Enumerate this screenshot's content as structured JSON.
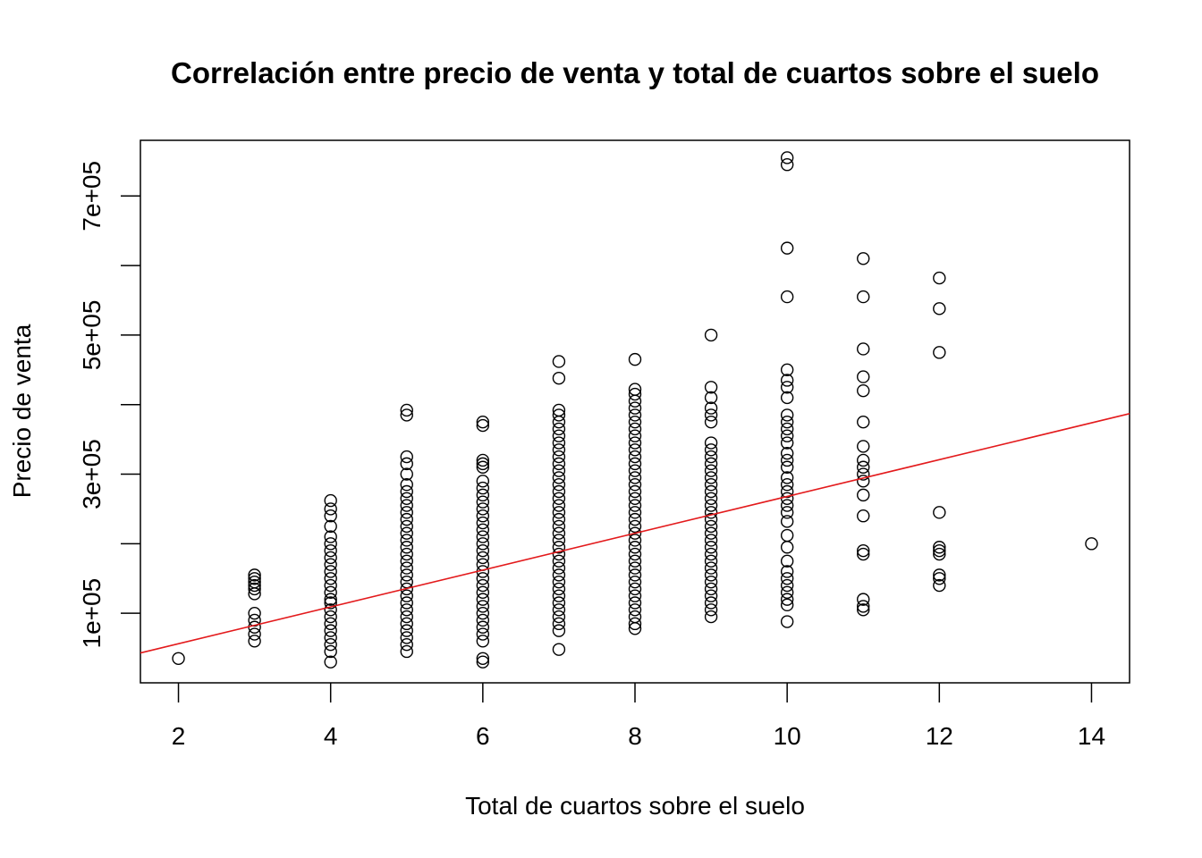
{
  "chart_data": {
    "type": "scatter",
    "title": "Correlación entre precio de venta y total de cuartos sobre el suelo",
    "xlabel": "Total de cuartos sobre el suelo",
    "ylabel": "Precio de venta",
    "xlim": [
      1.5,
      14.5
    ],
    "ylim": [
      0,
      780000
    ],
    "x_ticks": [
      2,
      4,
      6,
      8,
      10,
      12,
      14
    ],
    "x_tick_labels": [
      "2",
      "4",
      "6",
      "8",
      "10",
      "12",
      "14"
    ],
    "y_ticks": [
      100000,
      200000,
      300000,
      400000,
      500000,
      600000,
      700000
    ],
    "y_tick_labels": [
      "1e+05",
      "",
      "3e+05",
      "",
      "5e+05",
      "",
      "7e+05"
    ],
    "grid": false,
    "legend": "none",
    "colors": {
      "points": "#000000",
      "trend_line": "#e31a1c",
      "frame": "#000000"
    },
    "series": [
      {
        "values": [
          [
            2,
            35000
          ],
          [
            3,
            60000
          ],
          [
            3,
            70000
          ],
          [
            3,
            80000
          ],
          [
            3,
            90000
          ],
          [
            3,
            100000
          ],
          [
            3,
            128000
          ],
          [
            3,
            135000
          ],
          [
            3,
            140000
          ],
          [
            3,
            145000
          ],
          [
            3,
            150000
          ],
          [
            3,
            155000
          ],
          [
            4,
            30000
          ],
          [
            4,
            45000
          ],
          [
            4,
            55000
          ],
          [
            4,
            65000
          ],
          [
            4,
            75000
          ],
          [
            4,
            85000
          ],
          [
            4,
            95000
          ],
          [
            4,
            105000
          ],
          [
            4,
            115000
          ],
          [
            4,
            120000
          ],
          [
            4,
            130000
          ],
          [
            4,
            140000
          ],
          [
            4,
            150000
          ],
          [
            4,
            160000
          ],
          [
            4,
            170000
          ],
          [
            4,
            180000
          ],
          [
            4,
            190000
          ],
          [
            4,
            200000
          ],
          [
            4,
            210000
          ],
          [
            4,
            225000
          ],
          [
            4,
            240000
          ],
          [
            4,
            250000
          ],
          [
            4,
            262000
          ],
          [
            5,
            45000
          ],
          [
            5,
            55000
          ],
          [
            5,
            65000
          ],
          [
            5,
            75000
          ],
          [
            5,
            85000
          ],
          [
            5,
            95000
          ],
          [
            5,
            105000
          ],
          [
            5,
            115000
          ],
          [
            5,
            125000
          ],
          [
            5,
            135000
          ],
          [
            5,
            145000
          ],
          [
            5,
            155000
          ],
          [
            5,
            165000
          ],
          [
            5,
            175000
          ],
          [
            5,
            185000
          ],
          [
            5,
            195000
          ],
          [
            5,
            205000
          ],
          [
            5,
            215000
          ],
          [
            5,
            225000
          ],
          [
            5,
            235000
          ],
          [
            5,
            245000
          ],
          [
            5,
            255000
          ],
          [
            5,
            265000
          ],
          [
            5,
            275000
          ],
          [
            5,
            285000
          ],
          [
            5,
            300000
          ],
          [
            5,
            315000
          ],
          [
            5,
            325000
          ],
          [
            5,
            385000
          ],
          [
            5,
            392000
          ],
          [
            6,
            30000
          ],
          [
            6,
            35000
          ],
          [
            6,
            60000
          ],
          [
            6,
            70000
          ],
          [
            6,
            80000
          ],
          [
            6,
            90000
          ],
          [
            6,
            100000
          ],
          [
            6,
            110000
          ],
          [
            6,
            120000
          ],
          [
            6,
            130000
          ],
          [
            6,
            140000
          ],
          [
            6,
            150000
          ],
          [
            6,
            160000
          ],
          [
            6,
            170000
          ],
          [
            6,
            180000
          ],
          [
            6,
            190000
          ],
          [
            6,
            200000
          ],
          [
            6,
            210000
          ],
          [
            6,
            220000
          ],
          [
            6,
            230000
          ],
          [
            6,
            240000
          ],
          [
            6,
            250000
          ],
          [
            6,
            260000
          ],
          [
            6,
            270000
          ],
          [
            6,
            280000
          ],
          [
            6,
            290000
          ],
          [
            6,
            310000
          ],
          [
            6,
            315000
          ],
          [
            6,
            320000
          ],
          [
            6,
            370000
          ],
          [
            6,
            375000
          ],
          [
            7,
            48000
          ],
          [
            7,
            75000
          ],
          [
            7,
            85000
          ],
          [
            7,
            95000
          ],
          [
            7,
            105000
          ],
          [
            7,
            115000
          ],
          [
            7,
            125000
          ],
          [
            7,
            135000
          ],
          [
            7,
            145000
          ],
          [
            7,
            155000
          ],
          [
            7,
            165000
          ],
          [
            7,
            175000
          ],
          [
            7,
            185000
          ],
          [
            7,
            195000
          ],
          [
            7,
            205000
          ],
          [
            7,
            215000
          ],
          [
            7,
            225000
          ],
          [
            7,
            235000
          ],
          [
            7,
            245000
          ],
          [
            7,
            255000
          ],
          [
            7,
            265000
          ],
          [
            7,
            275000
          ],
          [
            7,
            285000
          ],
          [
            7,
            295000
          ],
          [
            7,
            305000
          ],
          [
            7,
            315000
          ],
          [
            7,
            325000
          ],
          [
            7,
            335000
          ],
          [
            7,
            345000
          ],
          [
            7,
            355000
          ],
          [
            7,
            365000
          ],
          [
            7,
            375000
          ],
          [
            7,
            385000
          ],
          [
            7,
            392000
          ],
          [
            7,
            438000
          ],
          [
            7,
            462000
          ],
          [
            8,
            78000
          ],
          [
            8,
            85000
          ],
          [
            8,
            95000
          ],
          [
            8,
            105000
          ],
          [
            8,
            115000
          ],
          [
            8,
            125000
          ],
          [
            8,
            135000
          ],
          [
            8,
            145000
          ],
          [
            8,
            155000
          ],
          [
            8,
            165000
          ],
          [
            8,
            175000
          ],
          [
            8,
            185000
          ],
          [
            8,
            195000
          ],
          [
            8,
            205000
          ],
          [
            8,
            215000
          ],
          [
            8,
            225000
          ],
          [
            8,
            235000
          ],
          [
            8,
            245000
          ],
          [
            8,
            255000
          ],
          [
            8,
            265000
          ],
          [
            8,
            275000
          ],
          [
            8,
            285000
          ],
          [
            8,
            295000
          ],
          [
            8,
            305000
          ],
          [
            8,
            315000
          ],
          [
            8,
            325000
          ],
          [
            8,
            335000
          ],
          [
            8,
            345000
          ],
          [
            8,
            355000
          ],
          [
            8,
            365000
          ],
          [
            8,
            375000
          ],
          [
            8,
            385000
          ],
          [
            8,
            395000
          ],
          [
            8,
            405000
          ],
          [
            8,
            415000
          ],
          [
            8,
            422000
          ],
          [
            8,
            465000
          ],
          [
            9,
            95000
          ],
          [
            9,
            105000
          ],
          [
            9,
            115000
          ],
          [
            9,
            125000
          ],
          [
            9,
            135000
          ],
          [
            9,
            145000
          ],
          [
            9,
            155000
          ],
          [
            9,
            165000
          ],
          [
            9,
            175000
          ],
          [
            9,
            185000
          ],
          [
            9,
            195000
          ],
          [
            9,
            205000
          ],
          [
            9,
            215000
          ],
          [
            9,
            225000
          ],
          [
            9,
            235000
          ],
          [
            9,
            245000
          ],
          [
            9,
            255000
          ],
          [
            9,
            265000
          ],
          [
            9,
            275000
          ],
          [
            9,
            285000
          ],
          [
            9,
            295000
          ],
          [
            9,
            305000
          ],
          [
            9,
            315000
          ],
          [
            9,
            325000
          ],
          [
            9,
            335000
          ],
          [
            9,
            345000
          ],
          [
            9,
            375000
          ],
          [
            9,
            385000
          ],
          [
            9,
            395000
          ],
          [
            9,
            410000
          ],
          [
            9,
            425000
          ],
          [
            9,
            500000
          ],
          [
            10,
            88000
          ],
          [
            10,
            112000
          ],
          [
            10,
            120000
          ],
          [
            10,
            130000
          ],
          [
            10,
            140000
          ],
          [
            10,
            150000
          ],
          [
            10,
            160000
          ],
          [
            10,
            175000
          ],
          [
            10,
            195000
          ],
          [
            10,
            212000
          ],
          [
            10,
            232000
          ],
          [
            10,
            245000
          ],
          [
            10,
            255000
          ],
          [
            10,
            265000
          ],
          [
            10,
            275000
          ],
          [
            10,
            285000
          ],
          [
            10,
            295000
          ],
          [
            10,
            310000
          ],
          [
            10,
            320000
          ],
          [
            10,
            330000
          ],
          [
            10,
            345000
          ],
          [
            10,
            355000
          ],
          [
            10,
            365000
          ],
          [
            10,
            375000
          ],
          [
            10,
            385000
          ],
          [
            10,
            410000
          ],
          [
            10,
            425000
          ],
          [
            10,
            435000
          ],
          [
            10,
            450000
          ],
          [
            10,
            555000
          ],
          [
            10,
            625000
          ],
          [
            10,
            745000
          ],
          [
            10,
            755000
          ],
          [
            11,
            105000
          ],
          [
            11,
            110000
          ],
          [
            11,
            120000
          ],
          [
            11,
            185000
          ],
          [
            11,
            190000
          ],
          [
            11,
            240000
          ],
          [
            11,
            270000
          ],
          [
            11,
            290000
          ],
          [
            11,
            300000
          ],
          [
            11,
            310000
          ],
          [
            11,
            320000
          ],
          [
            11,
            340000
          ],
          [
            11,
            375000
          ],
          [
            11,
            420000
          ],
          [
            11,
            440000
          ],
          [
            11,
            480000
          ],
          [
            11,
            555000
          ],
          [
            11,
            610000
          ],
          [
            12,
            140000
          ],
          [
            12,
            150000
          ],
          [
            12,
            155000
          ],
          [
            12,
            185000
          ],
          [
            12,
            190000
          ],
          [
            12,
            195000
          ],
          [
            12,
            245000
          ],
          [
            12,
            475000
          ],
          [
            12,
            538000
          ],
          [
            12,
            582000
          ],
          [
            14,
            200000
          ]
        ]
      }
    ],
    "trend_line": {
      "x": [
        1.5,
        14.5
      ],
      "y": [
        43000,
        387000
      ]
    }
  }
}
